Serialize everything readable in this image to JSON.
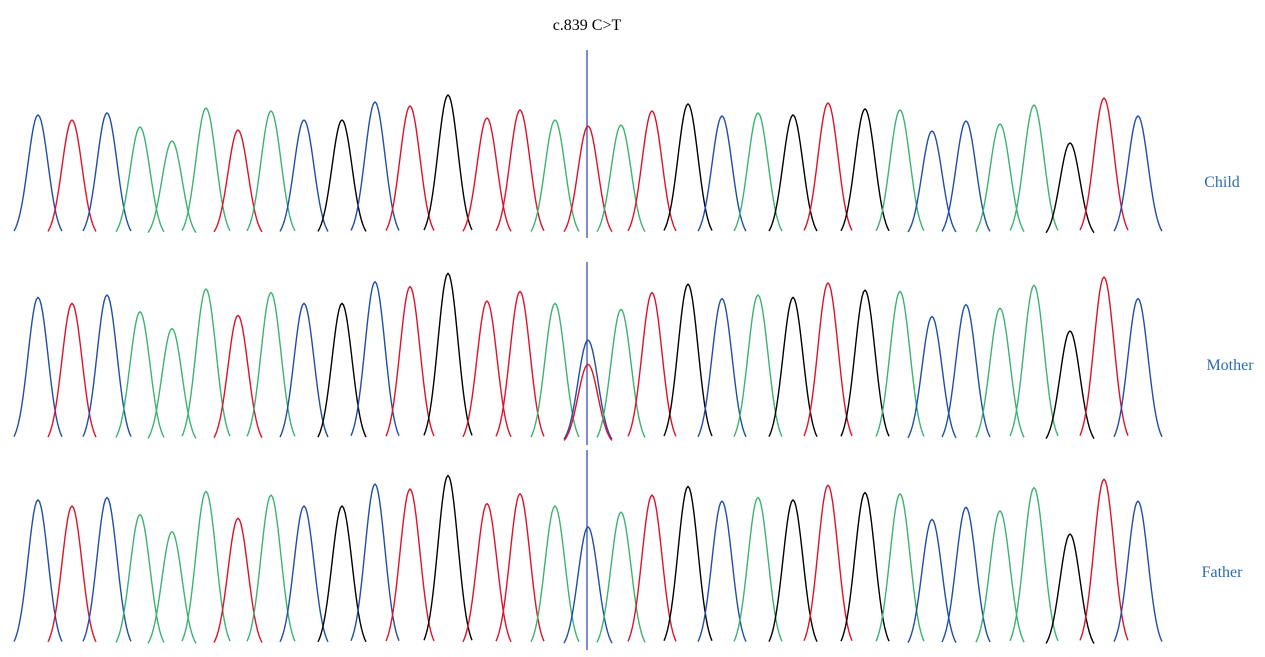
{
  "annotation": "c.839 C>T",
  "samples": [
    "Child",
    "Mother",
    "Father"
  ]
}
